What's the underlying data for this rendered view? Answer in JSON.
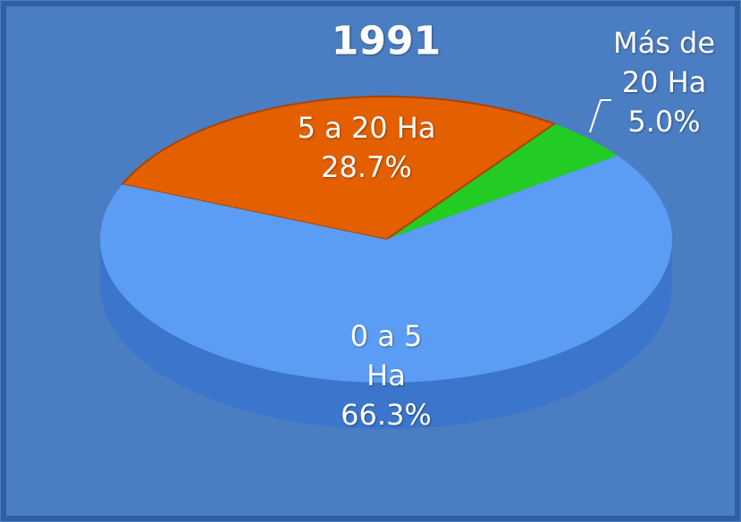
{
  "chart_data": {
    "type": "pie",
    "title": "1991",
    "categories": [
      "0 a 5 Ha",
      "5 a 20 Ha",
      "Más de 20 Ha"
    ],
    "values": [
      66.3,
      28.7,
      5.0
    ],
    "value_labels": [
      "66.3%",
      "28.7%",
      "5.0%"
    ],
    "colors": [
      "#5b9cf4",
      "#e35f00",
      "#22cc22"
    ]
  }
}
